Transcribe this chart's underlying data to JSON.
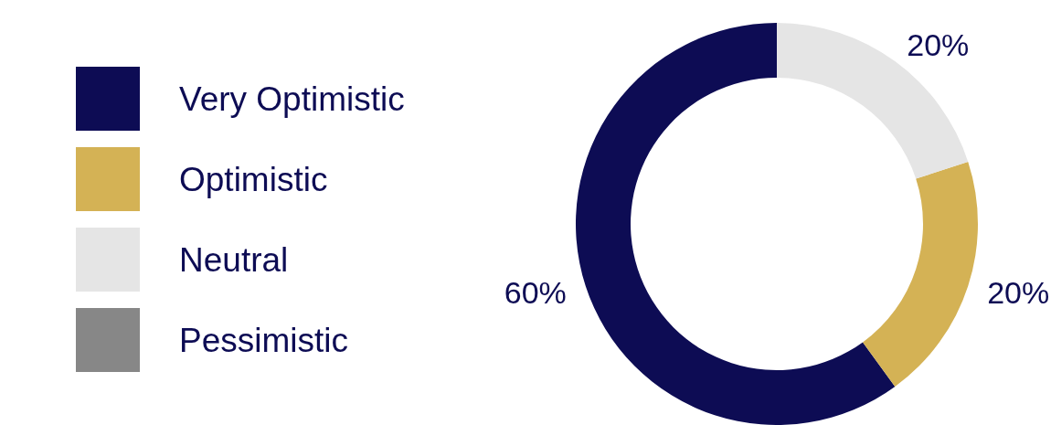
{
  "chart_data": {
    "type": "donut",
    "categories": [
      "Very Optimistic",
      "Optimistic",
      "Neutral",
      "Pessimistic"
    ],
    "values": [
      60,
      20,
      20,
      0
    ],
    "colors": [
      "#0d0c54",
      "#d4b255",
      "#e5e5e5",
      "#878787"
    ],
    "value_labels": [
      "60%",
      "20%",
      "20%",
      null
    ],
    "legend": "left"
  }
}
